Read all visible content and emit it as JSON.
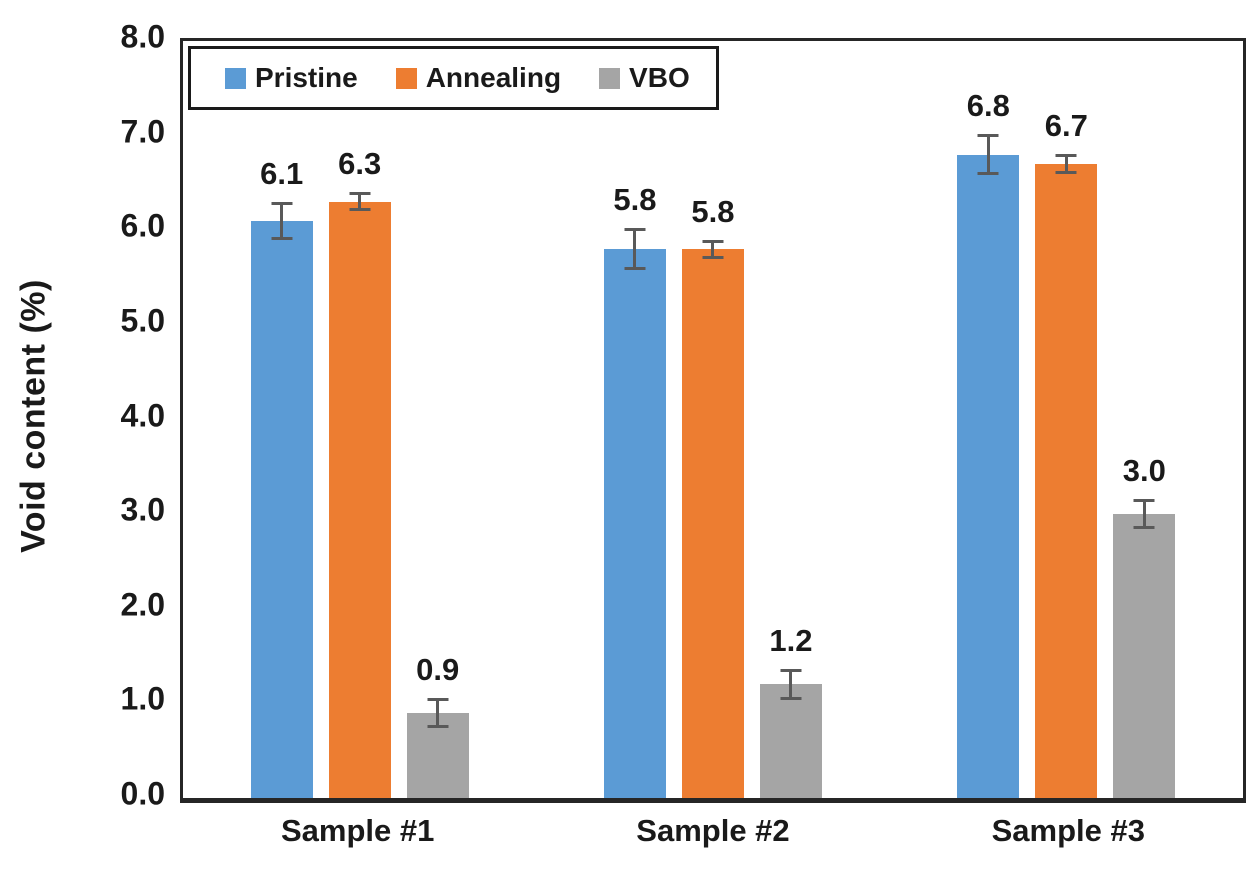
{
  "chart_data": {
    "type": "bar",
    "title": "",
    "categories": [
      "Sample #1",
      "Sample #2",
      "Sample #3"
    ],
    "series": [
      {
        "name": "Pristine",
        "color": "#5B9BD5",
        "values": [
          6.1,
          5.8,
          6.8
        ],
        "errors": [
          0.2,
          0.22,
          0.22
        ]
      },
      {
        "name": "Annealing",
        "color": "#ED7D31",
        "values": [
          6.3,
          5.8,
          6.7
        ],
        "errors": [
          0.1,
          0.1,
          0.11
        ]
      },
      {
        "name": "VBO",
        "color": "#A5A5A5",
        "values": [
          0.9,
          1.2,
          3.0
        ],
        "errors": [
          0.16,
          0.16,
          0.16
        ]
      }
    ],
    "ylabel": "Void content (%)",
    "ylim": [
      0,
      8
    ],
    "yticks": [
      "0.0",
      "1.0",
      "2.0",
      "3.0",
      "4.0",
      "5.0",
      "6.0",
      "7.0",
      "8.0"
    ],
    "grid": false,
    "legend_position": "top-left-inside",
    "bar_value_labels": true,
    "error_bars": true,
    "error_bar_color": "#595959",
    "axis_color": "#262626",
    "text_color": "#1a1a1a",
    "plot_background": "#ffffff"
  }
}
